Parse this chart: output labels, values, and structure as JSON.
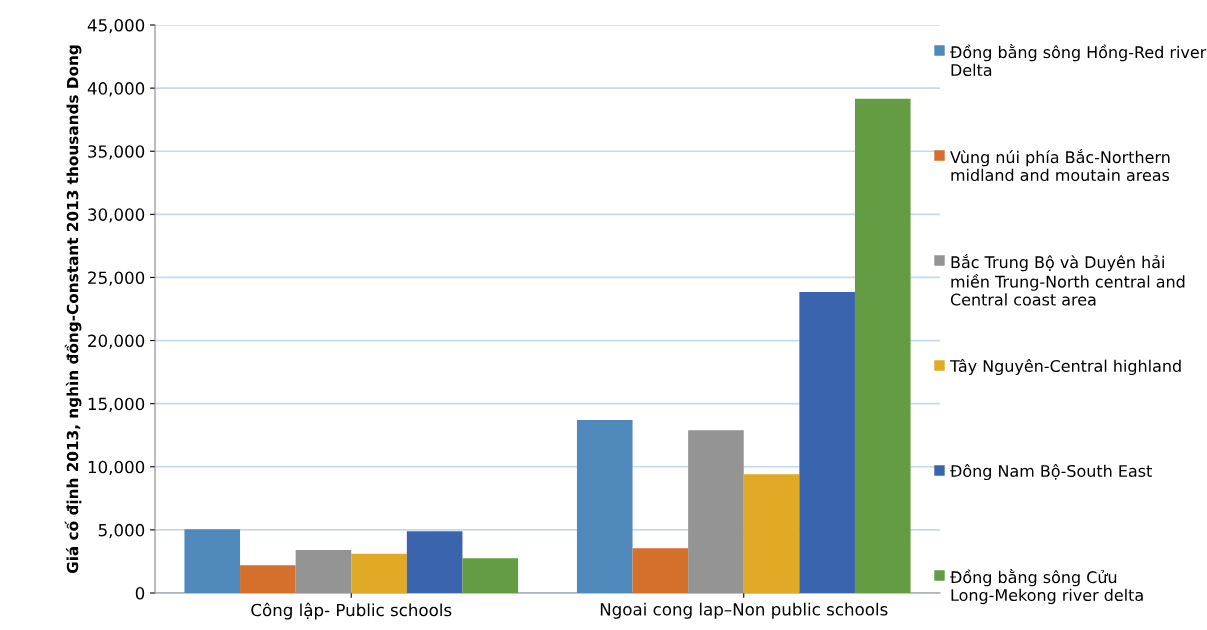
{
  "chart_data": {
    "type": "bar",
    "ylabel": "Giá cố định 2013, nghìn đồng-Constant 2013 thousands Dong",
    "categories": [
      "Công lập- Public schools",
      "Ngoai cong lap–Non public schools"
    ],
    "series": [
      {
        "name": "Đồng bằng sông Hồng-Red river Delta",
        "color": "#4f88bb",
        "values": [
          5050,
          13700
        ]
      },
      {
        "name": "Vùng núi phía Bắc-Northern midland and moutain areas",
        "color": "#d4702b",
        "values": [
          2200,
          3550
        ]
      },
      {
        "name": "Bắc Trung Bộ và Duyên hải miền Trung-North central and Central coast area",
        "color": "#949494",
        "values": [
          3400,
          12900
        ]
      },
      {
        "name": "Tây Nguyên-Central highland",
        "color": "#e0aa27",
        "values": [
          3100,
          9400
        ]
      },
      {
        "name": "Đông Nam Bộ-South East",
        "color": "#3a65ae",
        "values": [
          4900,
          23850
        ]
      },
      {
        "name": "Đồng bằng sông Cửu Long-Mekong river delta",
        "color": "#639c42",
        "values": [
          2750,
          39150
        ]
      }
    ],
    "ylim": [
      0,
      45000
    ],
    "yticks": [
      {
        "value": 0,
        "label": "0"
      },
      {
        "value": 5000,
        "label": "5,000"
      },
      {
        "value": 10000,
        "label": "10,000"
      },
      {
        "value": 15000,
        "label": "15,000"
      },
      {
        "value": 20000,
        "label": "20,000"
      },
      {
        "value": 25000,
        "label": "25,000"
      },
      {
        "value": 30000,
        "label": "30,000"
      },
      {
        "value": 35000,
        "label": "35,000"
      },
      {
        "value": 40000,
        "label": "40,000"
      },
      {
        "value": 45000,
        "label": "45,000"
      }
    ],
    "grid": "y",
    "legend": "right"
  }
}
